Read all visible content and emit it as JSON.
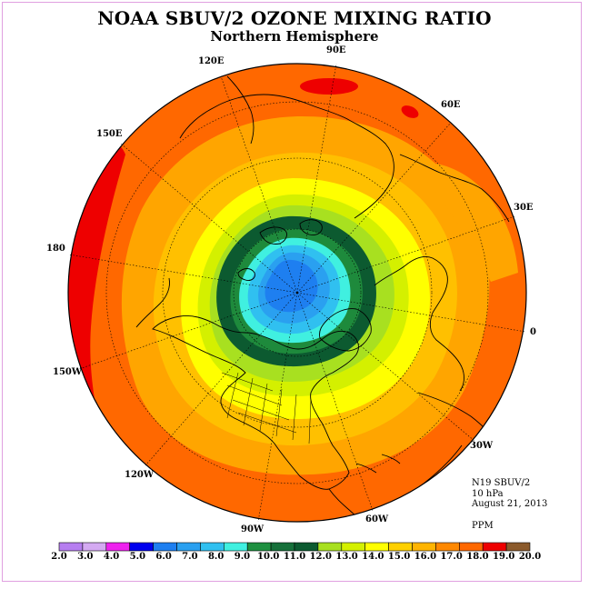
{
  "title": "NOAA SBUV/2 OZONE MIXING RATIO",
  "subtitle": "Northern Hemisphere",
  "longitude_labels": {
    "e90": "90E",
    "e60": "60E",
    "e30": "30E",
    "e0": "0",
    "w30": "30W",
    "w60": "60W",
    "w90": "90W",
    "w120": "120W",
    "w150": "150W",
    "d180": "180",
    "e150": "150E",
    "e120": "120E"
  },
  "info": {
    "instrument": "N19 SBUV/2",
    "level": "10 hPa",
    "date": "August 21, 2013",
    "units": "PPM"
  },
  "colorbar": {
    "ticks": [
      "2.0",
      "3.0",
      "4.0",
      "5.0",
      "6.0",
      "7.0",
      "8.0",
      "9.0",
      "10.0",
      "11.0",
      "12.0",
      "13.0",
      "14.0",
      "15.0",
      "16.0",
      "17.0",
      "18.0",
      "19.0",
      "20.0"
    ],
    "colors": [
      "#b67ef0",
      "#d4aaf2",
      "#ee22ee",
      "#0000ee",
      "#1e7ff0",
      "#2aa0f0",
      "#30c0f0",
      "#40f0e0",
      "#1e9040",
      "#16703a",
      "#0c5a30",
      "#a8e020",
      "#d4f000",
      "#ffff00",
      "#ffd000",
      "#ffb400",
      "#ff8800",
      "#ff6800",
      "#ee0000",
      "#8b5a2b"
    ]
  },
  "colors": {
    "coastline": "#000000",
    "frame": "#e0a0e0"
  }
}
